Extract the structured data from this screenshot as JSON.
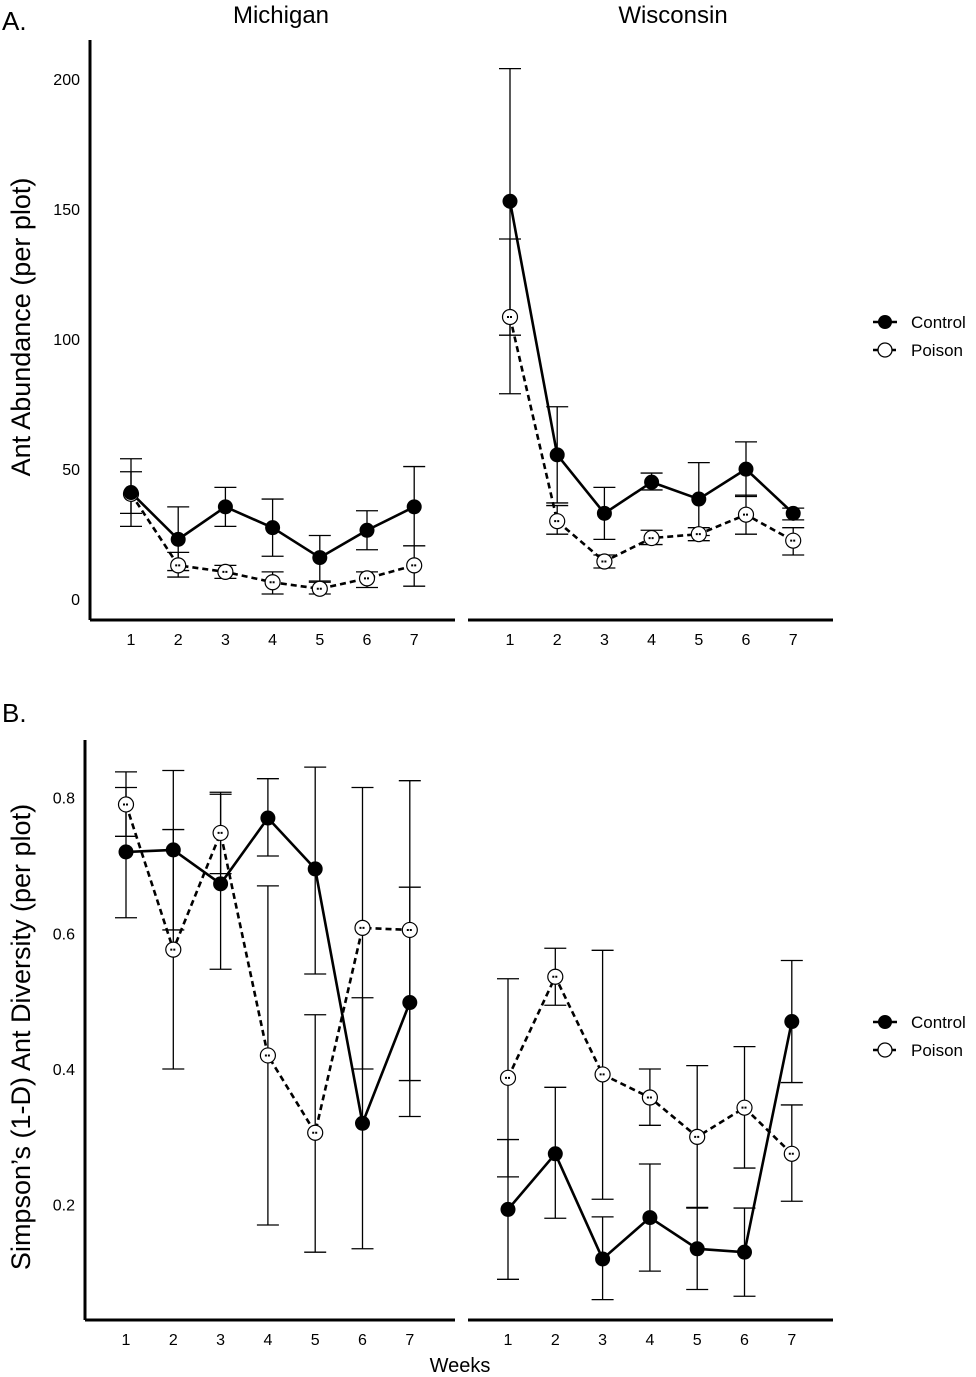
{
  "panels": [
    {
      "label": "A.",
      "ylabel": "Ant Abundance (per plot)",
      "y_ticks": [
        "0",
        "50",
        "100",
        "150",
        "200"
      ],
      "x_ticks": [
        "1",
        "2",
        "3",
        "4",
        "5",
        "6",
        "7"
      ],
      "facets": [
        "Michigan",
        "Wisconsin"
      ],
      "legend": [
        "Control",
        "Poison"
      ]
    },
    {
      "label": "B.",
      "ylabel": "Simpson’s (1-D) Ant Diversity (per plot)",
      "xlabel": "Weeks",
      "y_ticks": [
        "0.2",
        "0.4",
        "0.6",
        "0.8"
      ],
      "x_ticks": [
        "1",
        "2",
        "3",
        "4",
        "5",
        "6",
        "7"
      ],
      "legend": [
        "Control",
        "Poison"
      ]
    }
  ],
  "chart_data": [
    {
      "type": "line",
      "title": "",
      "ylabel": "Ant Abundance (per plot)",
      "xlabel": "",
      "x": [
        1,
        2,
        3,
        4,
        5,
        6,
        7
      ],
      "ylim": [
        -8,
        215
      ],
      "y_ticks": [
        0,
        50,
        100,
        150,
        200
      ],
      "legend_placement": "right",
      "grid": false,
      "facets": [
        {
          "name": "Michigan",
          "series": [
            {
              "name": "Control",
              "style": "solid",
              "marker": "filled",
              "values": [
                41,
                23,
                35.5,
                27.5,
                16,
                26.5,
                35.5
              ],
              "lower": [
                28,
                11,
                28,
                16.5,
                7,
                19,
                20.5
              ],
              "upper": [
                54,
                35.5,
                43,
                38.5,
                24.5,
                34,
                51
              ]
            },
            {
              "name": "Poison",
              "style": "dashed",
              "marker": "open",
              "values": [
                40.5,
                13,
                10.5,
                6.5,
                4,
                8,
                13
              ],
              "lower": [
                33,
                8.5,
                8,
                2,
                2,
                4.5,
                5
              ],
              "upper": [
                49,
                18,
                13,
                10.5,
                6.5,
                10.5,
                20.5
              ]
            }
          ]
        },
        {
          "name": "Wisconsin",
          "series": [
            {
              "name": "Control",
              "style": "solid",
              "marker": "filled",
              "values": [
                153,
                55.5,
                33,
                45,
                38.5,
                50,
                33
              ],
              "lower": [
                101.5,
                37,
                23,
                42,
                24.5,
                39.5,
                30.5
              ],
              "upper": [
                204,
                74,
                43,
                48.5,
                52.5,
                60.5,
                35
              ]
            },
            {
              "name": "Poison",
              "style": "dashed",
              "marker": "open",
              "values": [
                108.5,
                30,
                14.5,
                23.5,
                25,
                32.5,
                22.5
              ],
              "lower": [
                79,
                25,
                12,
                21,
                22.5,
                25,
                17
              ],
              "upper": [
                138.5,
                36,
                17,
                26.5,
                27.5,
                40,
                27.5
              ]
            }
          ]
        }
      ]
    },
    {
      "type": "line",
      "title": "",
      "ylabel": "Simpson’s (1-D) Ant Diversity (per plot)",
      "xlabel": "Weeks",
      "x": [
        1,
        2,
        3,
        4,
        5,
        6,
        7
      ],
      "ylim": [
        0.03,
        0.885
      ],
      "y_ticks": [
        0.2,
        0.4,
        0.6,
        0.8
      ],
      "legend_placement": "right",
      "grid": false,
      "facets": [
        {
          "name": "",
          "series": [
            {
              "name": "Control",
              "style": "solid",
              "marker": "filled",
              "values": [
                0.72,
                0.723,
                0.673,
                0.77,
                0.695,
                0.32,
                0.498
              ],
              "lower": [
                0.623,
                0.605,
                0.547,
                0.714,
                0.54,
                0.135,
                0.33
              ],
              "upper": [
                0.815,
                0.84,
                0.805,
                0.828,
                0.845,
                0.815,
                0.668
              ]
            },
            {
              "name": "Poison",
              "style": "dashed",
              "marker": "open",
              "values": [
                0.79,
                0.576,
                0.748,
                0.42,
                0.306,
                0.608,
                0.605
              ],
              "lower": [
                0.743,
                0.4,
                0.688,
                0.17,
                0.13,
                0.4,
                0.383
              ],
              "upper": [
                0.838,
                0.753,
                0.808,
                0.67,
                0.48,
                0.505,
                0.825
              ]
            }
          ]
        },
        {
          "name": "",
          "series": [
            {
              "name": "Control",
              "style": "solid",
              "marker": "filled",
              "values": [
                0.193,
                0.275,
                0.12,
                0.181,
                0.135,
                0.13,
                0.47
              ],
              "lower": [
                0.09,
                0.18,
                0.06,
                0.102,
                0.075,
                0.065,
                0.38
              ],
              "upper": [
                0.296,
                0.373,
                0.182,
                0.26,
                0.195,
                0.195,
                0.56
              ]
            },
            {
              "name": "Poison",
              "style": "dashed",
              "marker": "open",
              "values": [
                0.387,
                0.536,
                0.392,
                0.358,
                0.3,
                0.343,
                0.275
              ],
              "lower": [
                0.241,
                0.494,
                0.208,
                0.317,
                0.196,
                0.254,
                0.205
              ],
              "upper": [
                0.533,
                0.578,
                0.575,
                0.4,
                0.405,
                0.433,
                0.347
              ]
            }
          ]
        }
      ]
    }
  ]
}
